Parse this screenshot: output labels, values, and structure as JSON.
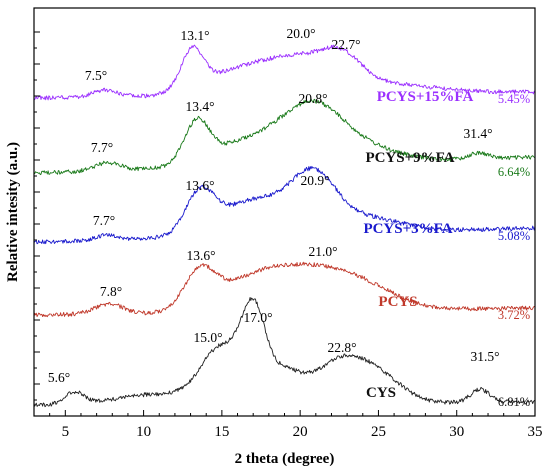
{
  "chart_data": {
    "type": "line",
    "xlabel": "2 theta (degree)",
    "ylabel": "Relative intesity (a.u.)",
    "xlim": [
      3,
      35
    ],
    "x_ticks": [
      "5",
      "10",
      "15",
      "20",
      "25",
      "30",
      "35"
    ],
    "y_ticks_labeled": false,
    "grid": false,
    "legend": "none (series labelled inline)",
    "series": [
      {
        "name": "PCYS+15%FA",
        "color": "#9b30ff",
        "crystallinity": "5.45%",
        "peaks": [
          {
            "x": 7.5,
            "label": "7.5°"
          },
          {
            "x": 13.1,
            "label": "13.1°"
          },
          {
            "x": 20.0,
            "label": "20.0°"
          },
          {
            "x": 22.7,
            "label": "22.7°"
          }
        ]
      },
      {
        "name": "PCYS+9%FA",
        "color": "#1a7a1a",
        "crystallinity": "6.64%",
        "peaks": [
          {
            "x": 7.7,
            "label": "7.7°"
          },
          {
            "x": 13.4,
            "label": "13.4°"
          },
          {
            "x": 20.8,
            "label": "20.8°"
          },
          {
            "x": 31.4,
            "label": "31.4°"
          }
        ]
      },
      {
        "name": "PCYS+3%FA",
        "color": "#1a1acd",
        "crystallinity": "5.08%",
        "peaks": [
          {
            "x": 7.7,
            "label": "7.7°"
          },
          {
            "x": 13.6,
            "label": "13.6°"
          },
          {
            "x": 20.9,
            "label": "20.9°"
          }
        ]
      },
      {
        "name": "PCYS",
        "color": "#c0392b",
        "crystallinity": "3.72%",
        "peaks": [
          {
            "x": 7.8,
            "label": "7.8°"
          },
          {
            "x": 13.6,
            "label": "13.6°"
          },
          {
            "x": 21.0,
            "label": "21.0°"
          }
        ]
      },
      {
        "name": "CYS",
        "color": "#222222",
        "crystallinity": "6.81%",
        "peaks": [
          {
            "x": 5.6,
            "label": "5.6°"
          },
          {
            "x": 15.0,
            "label": "15.0°"
          },
          {
            "x": 17.0,
            "label": "17.0°"
          },
          {
            "x": 22.8,
            "label": "22.8°"
          },
          {
            "x": 31.5,
            "label": "31.5°"
          }
        ]
      }
    ]
  }
}
